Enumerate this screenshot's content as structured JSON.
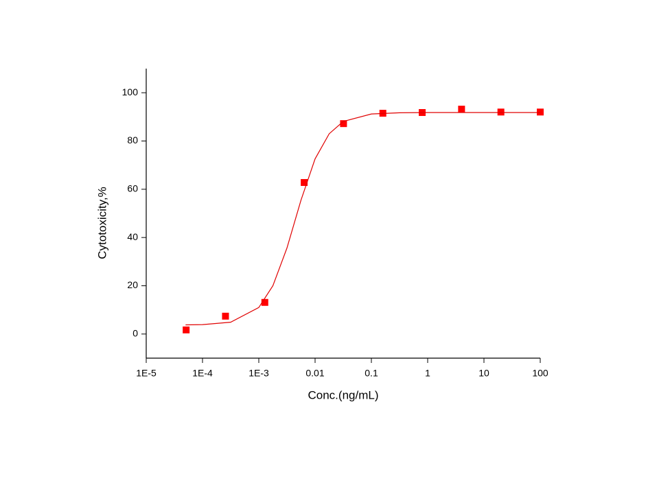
{
  "chart_data": {
    "type": "scatter",
    "xlabel": "Conc.(ng/mL)",
    "ylabel": "Cytotoxicity,%",
    "xscale": "log",
    "xlim": [
      1e-05,
      100
    ],
    "xticks": [
      {
        "value": 1e-05,
        "label": "1E-5"
      },
      {
        "value": 0.0001,
        "label": "1E-4"
      },
      {
        "value": 0.001,
        "label": "1E-3"
      },
      0.01,
      0.1,
      1,
      10,
      100
    ],
    "ylim": [
      -10,
      110
    ],
    "yticks": [
      0,
      20,
      40,
      60,
      80,
      100
    ],
    "series": [
      {
        "type": "scatter",
        "color": "#ff0000",
        "x": [
          5.12e-05,
          0.000256,
          0.00128,
          0.0064,
          0.032,
          0.16,
          0.8,
          4,
          20,
          100
        ],
        "values": [
          1.7,
          7.4,
          13.1,
          62.8,
          87.2,
          91.5,
          91.8,
          93.2,
          92.0,
          92.0
        ]
      },
      {
        "type": "line",
        "color": "#e00000",
        "x": [
          5e-05,
          0.0001,
          0.000316,
          0.001,
          0.00178,
          0.00316,
          0.00562,
          0.01,
          0.0178,
          0.0316,
          0.1,
          0.316,
          1,
          10,
          100
        ],
        "values": [
          3.8,
          3.9,
          4.9,
          11.0,
          20.0,
          35.6,
          55.5,
          72.6,
          83.0,
          88.1,
          91.2,
          91.7,
          91.8,
          91.8,
          91.8
        ]
      }
    ]
  }
}
